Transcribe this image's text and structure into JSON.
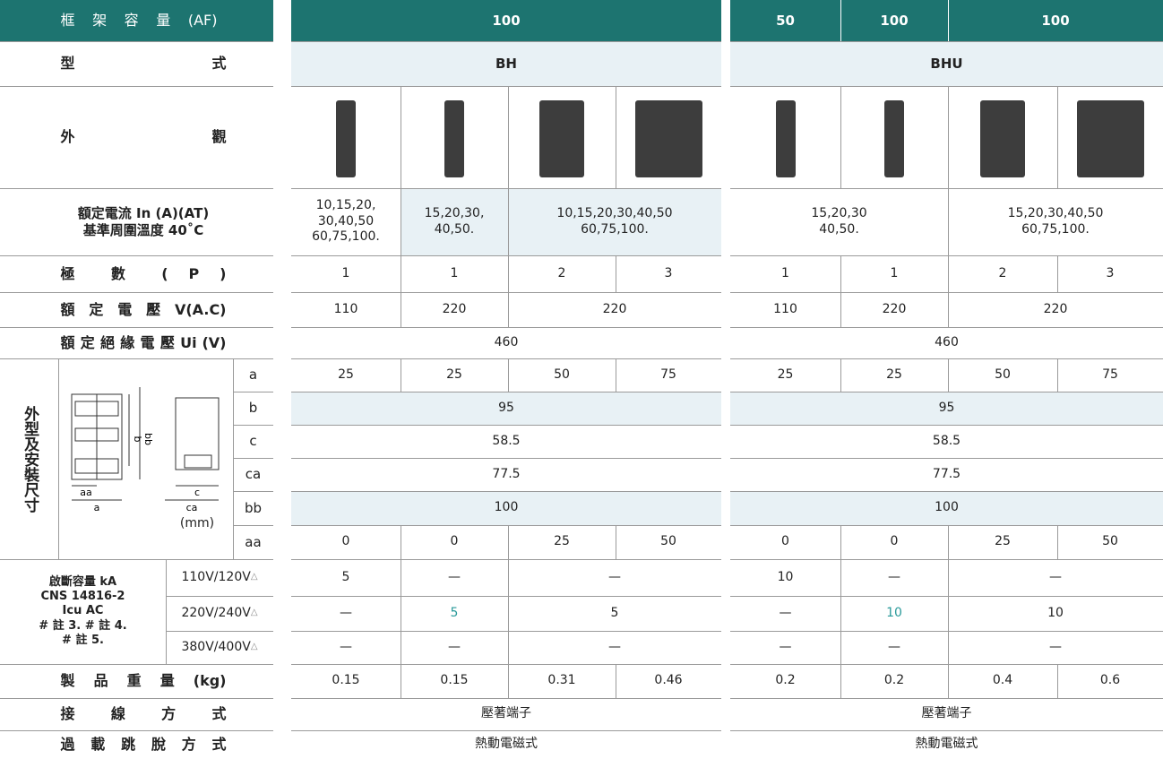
{
  "rows": [
    {
      "label": "框 架 容 量 (AF)",
      "cells": [
        "100",
        "50",
        "100",
        "100"
      ]
    },
    {
      "label": "型 式",
      "cells": [
        "BH",
        "BHU"
      ]
    },
    {
      "label": "外 觀"
    },
    {
      "label": [
        "額定電流 In (A)(AT)",
        "基準周圍溫度 40˚C"
      ],
      "cells": [
        "10,15,20,\n30,40,50\n60,75,100.",
        "15,20,30,\n40,50.",
        "10,15,20,30,40,50\n60,75,100.",
        "15,20,30\n40,50.",
        "15,20,30,40,50\n60,75,100."
      ]
    },
    {
      "label": "極 數 ( P )",
      "cells": [
        "1",
        "1",
        "2",
        "3",
        "1",
        "1",
        "2",
        "3"
      ]
    },
    {
      "label": "額 定 電 壓 V(A.C)",
      "cells": [
        "110",
        "220",
        "220",
        "110",
        "220",
        "220"
      ]
    },
    {
      "label": "額 定 絕 緣 電 壓 Ui (V)",
      "cells": [
        "460",
        "460"
      ]
    }
  ],
  "dimensions": {
    "label": "外型及安裝尺寸",
    "unit": "(mm)",
    "diagram_labels": [
      "aa",
      "a",
      "b",
      "bb",
      "c",
      "ca"
    ],
    "rows": [
      {
        "label": "a",
        "cells": [
          "25",
          "25",
          "50",
          "75",
          "25",
          "25",
          "50",
          "75"
        ]
      },
      {
        "label": "b",
        "cells": [
          "95",
          "95"
        ]
      },
      {
        "label": "c",
        "cells": [
          "58.5",
          "58.5"
        ]
      },
      {
        "label": "ca",
        "cells": [
          "77.5",
          "77.5"
        ]
      },
      {
        "label": "bb",
        "cells": [
          "100",
          "100"
        ]
      },
      {
        "label": "aa",
        "cells": [
          "0",
          "0",
          "25",
          "50",
          "0",
          "0",
          "25",
          "50"
        ]
      }
    ]
  },
  "breaking_capacity": {
    "label": [
      "啟斷容量 kA",
      "CNS 14816-2",
      "Icu AC",
      "# 註 3. # 註 4.",
      "# 註 5."
    ],
    "marker": "△",
    "rows": [
      {
        "label": "110V/120V",
        "cells": [
          "5",
          "—",
          "—",
          "10",
          "—",
          "—"
        ]
      },
      {
        "label": "220V/240V",
        "cells": [
          "—",
          "5",
          "5",
          "—",
          "10",
          "10"
        ]
      },
      {
        "label": "380V/400V",
        "cells": [
          "—",
          "—",
          "—",
          "—",
          "—",
          "—"
        ]
      }
    ]
  },
  "bottom_rows": [
    {
      "label": "製 品 重 量 (kg)",
      "cells": [
        "0.15",
        "0.15",
        "0.31",
        "0.46",
        "0.2",
        "0.2",
        "0.4",
        "0.6"
      ]
    },
    {
      "label": "接 線 方 式",
      "cells": [
        "壓著端子",
        "壓著端子"
      ]
    },
    {
      "label": "過 載 跳 脫 方 式",
      "cells": [
        "熱動電磁式",
        "熱動電磁式"
      ]
    }
  ]
}
